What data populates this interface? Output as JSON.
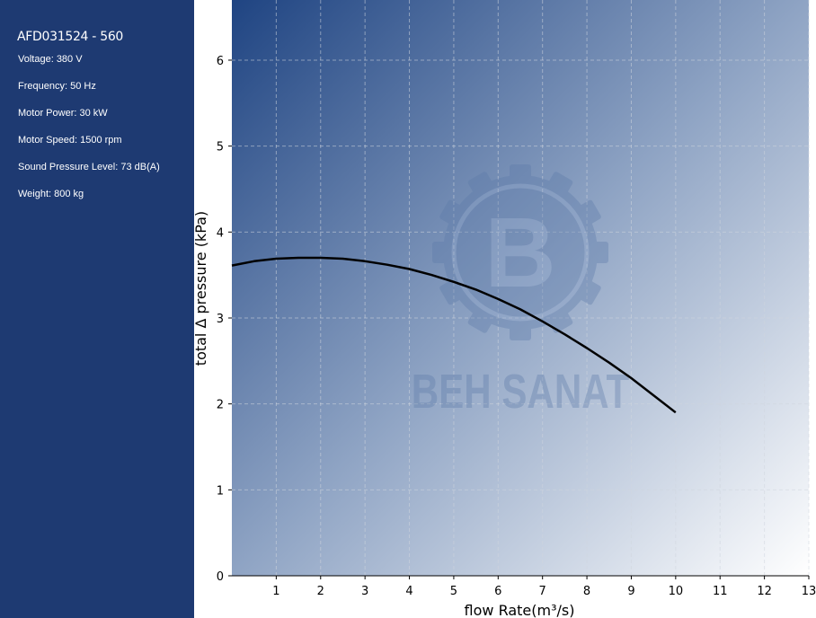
{
  "sidebar": {
    "title": "AFD031524 - 560",
    "specs": [
      "Voltage: 380 V",
      "Frequency: 50 Hz",
      "Motor Power: 30 kW",
      "Motor Speed: 1500 rpm",
      "Sound Pressure Level: 73 dB(A)",
      "Weight: 800 kg"
    ]
  },
  "watermark": {
    "logo_text": "BEH SANAT",
    "letter": "B"
  },
  "chart_data": {
    "type": "line",
    "xlabel": "flow Rate(m³/s)",
    "ylabel": "total Δ pressure (kPa)",
    "xlim": [
      0,
      13
    ],
    "ylim": [
      0,
      6.7
    ],
    "xticks": [
      1,
      2,
      3,
      4,
      5,
      6,
      7,
      8,
      9,
      10,
      11,
      12,
      13
    ],
    "yticks": [
      0,
      1,
      2,
      3,
      4,
      5,
      6
    ],
    "grid": true,
    "series": [
      {
        "color": "#000000",
        "x": [
          0,
          0.5,
          1,
          1.5,
          2,
          2.5,
          3,
          3.5,
          4,
          4.5,
          5,
          5.5,
          6,
          6.5,
          7,
          7.5,
          8,
          8.5,
          9,
          9.5,
          10
        ],
        "y": [
          3.61,
          3.66,
          3.69,
          3.7,
          3.7,
          3.69,
          3.66,
          3.62,
          3.57,
          3.5,
          3.42,
          3.33,
          3.22,
          3.1,
          2.96,
          2.81,
          2.65,
          2.48,
          2.3,
          2.1,
          1.9
        ]
      }
    ]
  }
}
